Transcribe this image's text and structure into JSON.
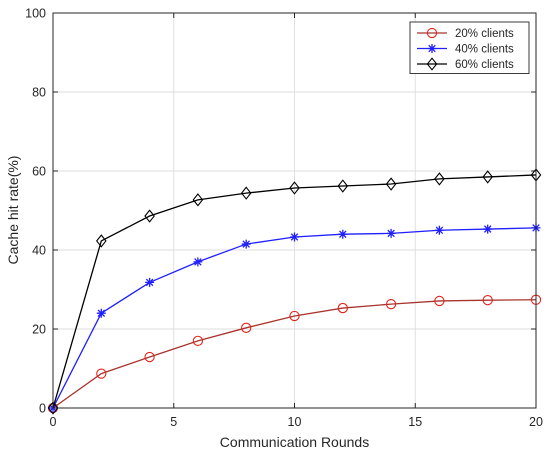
{
  "chart_data": {
    "type": "line",
    "x": [
      0,
      2,
      4,
      6,
      8,
      10,
      12,
      14,
      16,
      18,
      20
    ],
    "series": [
      {
        "name": "20% clients",
        "values": [
          0,
          8.7,
          12.9,
          17.0,
          20.3,
          23.3,
          25.3,
          26.3,
          27.1,
          27.3,
          27.4
        ],
        "line_color": "#a8342c",
        "marker_color": "#e3231b",
        "marker": "circle"
      },
      {
        "name": "40% clients",
        "values": [
          0,
          24.0,
          31.8,
          37.0,
          41.5,
          43.3,
          44.0,
          44.2,
          45.0,
          45.3,
          45.6
        ],
        "line_color": "#1f1fff",
        "marker_color": "#1f1fff",
        "marker": "asterisk"
      },
      {
        "name": "60% clients",
        "values": [
          0,
          42.3,
          48.6,
          52.7,
          54.4,
          55.7,
          56.2,
          56.7,
          58.0,
          58.5,
          59.0
        ],
        "line_color": "#000000",
        "marker_color": "#000000",
        "marker": "diamond"
      }
    ],
    "xlabel": "Communication Rounds",
    "ylabel": "Cache hit rate(%)",
    "xlim": [
      0,
      20
    ],
    "ylim": [
      0,
      100
    ],
    "x_ticks": [
      0,
      5,
      10,
      15,
      20
    ],
    "y_ticks": [
      0,
      20,
      40,
      60,
      80,
      100
    ],
    "grid": true,
    "legend": "top-right"
  }
}
